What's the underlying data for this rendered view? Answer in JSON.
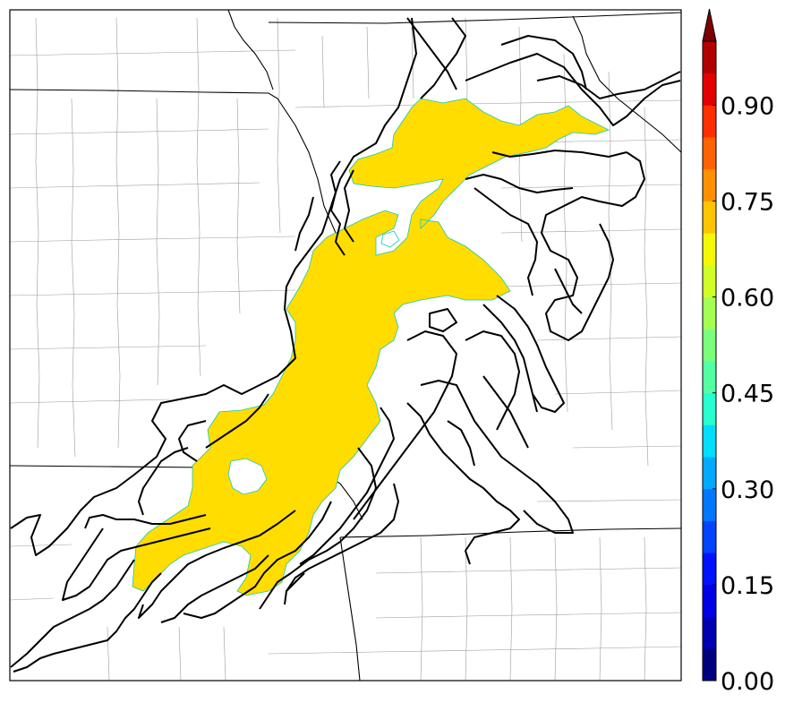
{
  "map": {
    "type": "probability-map",
    "fill_color": "#ffdd00",
    "contour_color": "#000000",
    "state_line_color": "#000000",
    "county_line_color": "#9a9a9a",
    "background": "#ffffff"
  },
  "colorbar": {
    "min": 0.0,
    "max": 1.0,
    "step": 0.05,
    "extend": "max",
    "colors": [
      "#00007f",
      "#0000b2",
      "#0000e5",
      "#0011ff",
      "#0044ff",
      "#0077ff",
      "#00aaff",
      "#00ddfd",
      "#27ffcf",
      "#53ffa3",
      "#7bff7b",
      "#a3ff53",
      "#cfff27",
      "#f4f802",
      "#ffc400",
      "#ff9100",
      "#ff6200",
      "#ff2f00",
      "#e50000",
      "#b20000"
    ],
    "extend_color": "#7f0000",
    "ticks": [
      {
        "value": 0.0,
        "label": "0.00"
      },
      {
        "value": 0.15,
        "label": "0.15"
      },
      {
        "value": 0.3,
        "label": "0.30"
      },
      {
        "value": 0.45,
        "label": "0.45"
      },
      {
        "value": 0.6,
        "label": "0.60"
      },
      {
        "value": 0.75,
        "label": "0.75"
      },
      {
        "value": 0.9,
        "label": "0.90"
      }
    ]
  }
}
